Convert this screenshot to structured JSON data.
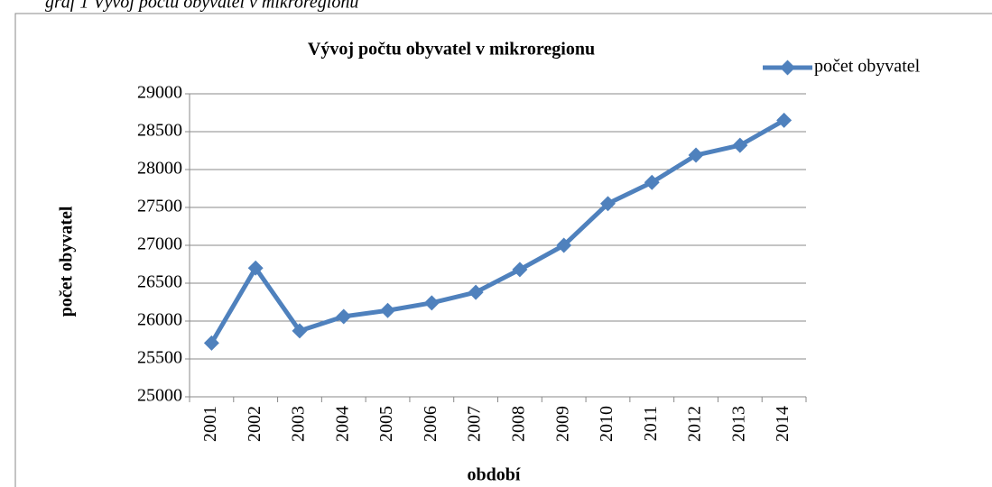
{
  "caption": "graf 1 Vývoj počtu obyvatel v mikroregionu",
  "chart_data": {
    "type": "line",
    "title": "Vývoj počtu obyvatel v mikroregionu",
    "x_label": "období",
    "y_label": "počet obyvatel",
    "categories": [
      "2001",
      "2002",
      "2003",
      "2004",
      "2005",
      "2006",
      "2007",
      "2008",
      "2009",
      "2010",
      "2011",
      "2012",
      "2013",
      "2014"
    ],
    "series": [
      {
        "name": "počet obyvatel",
        "color": "#4f81bd",
        "values": [
          25710,
          26700,
          25870,
          26060,
          26140,
          26240,
          26380,
          26680,
          27000,
          27550,
          27830,
          28190,
          28320,
          28650
        ]
      }
    ],
    "ylim": [
      25000,
      29000
    ],
    "yticks": [
      25000,
      25500,
      26000,
      26500,
      27000,
      27500,
      28000,
      28500,
      29000
    ],
    "grid": true,
    "legend": "top-right"
  }
}
